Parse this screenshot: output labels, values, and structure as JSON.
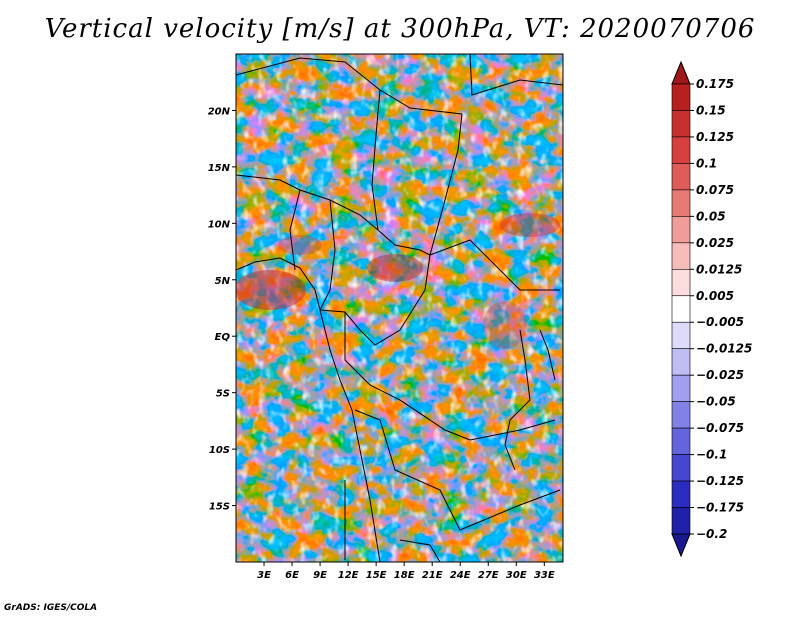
{
  "chart_data": {
    "type": "heatmap",
    "title": "Vertical velocity [m/s] at 300hPa, VT: 2020070706",
    "variable": "Vertical velocity",
    "units": "m/s",
    "level": "300hPa",
    "valid_time": "2020070706",
    "x_axis": {
      "range": [
        0,
        35
      ],
      "units": "degrees longitude",
      "ticks": [
        3,
        6,
        9,
        12,
        15,
        18,
        21,
        24,
        27,
        30,
        33
      ],
      "tick_labels": [
        "3E",
        "6E",
        "9E",
        "12E",
        "15E",
        "18E",
        "21E",
        "24E",
        "27E",
        "30E",
        "33E"
      ]
    },
    "y_axis": {
      "range": [
        -20,
        25
      ],
      "units": "degrees latitude",
      "ticks": [
        20,
        15,
        10,
        5,
        0,
        -5,
        -10,
        -15
      ],
      "tick_labels": [
        "20N",
        "15N",
        "10N",
        "5N",
        "EQ",
        "5S",
        "10S",
        "15S"
      ]
    },
    "colorbar": {
      "orientation": "vertical",
      "labels": [
        "0.175",
        "0.15",
        "0.125",
        "0.1",
        "0.075",
        "0.05",
        "0.025",
        "0.0125",
        "0.005",
        "−0.005",
        "−0.0125",
        "−0.025",
        "−0.05",
        "−0.075",
        "−0.1",
        "−0.125",
        "−0.175",
        "−0.2"
      ],
      "colors_top_to_bottom": [
        "#a01818",
        "#b82020",
        "#c83030",
        "#d84040",
        "#e05c58",
        "#e87a76",
        "#f09c98",
        "#f6bcba",
        "#fcdcdc",
        "#ffffff",
        "#dcdcfa",
        "#bebef4",
        "#a0a0ee",
        "#8282e6",
        "#6464dc",
        "#4646d0",
        "#2c2cc0",
        "#2020a8",
        "#181890"
      ]
    }
  },
  "credit": "GrADS: IGES/COLA"
}
